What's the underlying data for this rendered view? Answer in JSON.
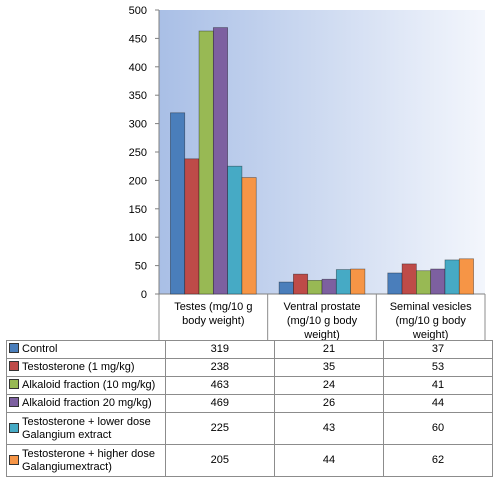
{
  "chart_data": {
    "type": "bar",
    "categories": [
      "Testes (mg/10 g body weight)",
      "Ventral prostate (mg/10 g body weight)",
      "Seminal vesicles (mg/10 g body weight)"
    ],
    "category_lines": [
      [
        "Testes (mg/10 g",
        "body weight)"
      ],
      [
        "Ventral prostate",
        "(mg/10 g body",
        "weight)"
      ],
      [
        "Seminal vesicles",
        "(mg/10 g body",
        "weight)"
      ]
    ],
    "series": [
      {
        "name": "Control",
        "name_lines": [
          "Control"
        ],
        "color": "#4a7ebb",
        "values": [
          319,
          21,
          37
        ]
      },
      {
        "name": "Testosterone (1 mg/kg)",
        "name_lines": [
          "Testosterone (1 mg/kg)"
        ],
        "color": "#be4b48",
        "values": [
          238,
          35,
          53
        ]
      },
      {
        "name": "Alkaloid fraction (10 mg/kg)",
        "name_lines": [
          "Alkaloid fraction (10 mg/kg)"
        ],
        "color": "#98b954",
        "values": [
          463,
          24,
          41
        ]
      },
      {
        "name": "Alkaloid fraction 20 mg/kg)",
        "name_lines": [
          "Alkaloid fraction 20 mg/kg)"
        ],
        "color": "#7d60a0",
        "values": [
          469,
          26,
          44
        ]
      },
      {
        "name": "Testosterone + lower dose Galangium extract",
        "name_lines": [
          "Testosterone + lower dose",
          "Galangium extract"
        ],
        "color": "#46aac5",
        "values": [
          225,
          43,
          60
        ]
      },
      {
        "name": "Testosterone + higher dose Galangiumextract",
        "name_lines": [
          "Testosterone + higher dose",
          "Galangiumextract)"
        ],
        "color": "#f69546",
        "values": [
          205,
          44,
          62
        ]
      }
    ],
    "ylim": [
      0,
      500
    ],
    "yticks": [
      0,
      50,
      100,
      150,
      200,
      250,
      300,
      350,
      400,
      450,
      500
    ],
    "grid": false,
    "legend": "data-table",
    "title": "",
    "xlabel": "",
    "ylabel": ""
  }
}
